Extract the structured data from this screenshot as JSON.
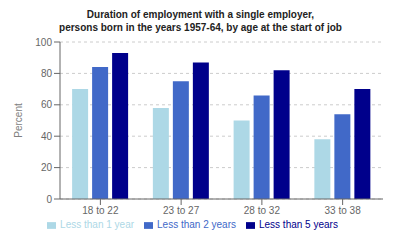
{
  "chart_data": {
    "type": "bar",
    "title": "Duration of employment with a single employer,",
    "subtitle": "persons born in the years 1957-64, by age at the start of job",
    "categories": [
      "18 to 22",
      "23 to 27",
      "28 to 32",
      "33 to 38"
    ],
    "series": [
      {
        "name": "Less than 1 year",
        "color": "#add8e6",
        "values": [
          70,
          58,
          50,
          38
        ]
      },
      {
        "name": "Less than 2 years",
        "color": "#4169c8",
        "values": [
          84,
          75,
          66,
          54
        ]
      },
      {
        "name": "Less than 5 years",
        "color": "#00008b",
        "values": [
          93,
          87,
          82,
          70
        ]
      }
    ],
    "ylabel": "Percent",
    "ylim": [
      0,
      100
    ],
    "yticks": [
      0,
      20,
      40,
      60,
      80,
      100
    ],
    "grid": true,
    "legend": "bottom"
  }
}
